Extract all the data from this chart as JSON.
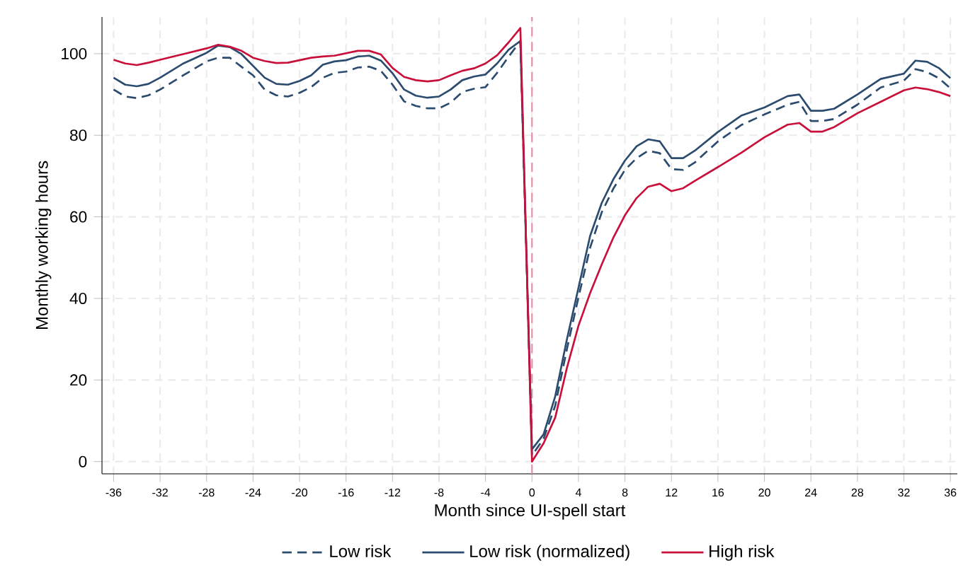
{
  "chart_data": {
    "type": "line",
    "xlabel": "Month since UI-spell start",
    "ylabel": "Monthly working hours",
    "x": [
      -36,
      -35,
      -34,
      -33,
      -32,
      -30,
      -28,
      -27,
      -26,
      -25,
      -24,
      -23,
      -22,
      -21,
      -20,
      -19,
      -18,
      -17,
      -16,
      -15,
      -14,
      -13,
      -12,
      -11,
      -10,
      -9,
      -8,
      -7,
      -6,
      -5,
      -4,
      -3,
      -2,
      -1,
      0,
      1,
      2,
      3,
      4,
      5,
      6,
      7,
      8,
      9,
      10,
      11,
      12,
      13,
      14,
      16,
      18,
      20,
      22,
      23,
      24,
      25,
      26,
      28,
      30,
      32,
      33,
      34,
      35,
      36
    ],
    "series": [
      {
        "name": "Low risk",
        "color": "#2b4b6f",
        "line_style": "dashed",
        "values": [
          91.2,
          89.5,
          89.1,
          89.8,
          91.2,
          94.7,
          98.1,
          99,
          99,
          96.8,
          94.7,
          91.2,
          89.8,
          89.5,
          90.4,
          91.8,
          94.1,
          95.3,
          95.6,
          96.6,
          96.8,
          95.8,
          92.4,
          88.3,
          87.2,
          86.6,
          86.6,
          88,
          90.6,
          91.4,
          91.8,
          95.3,
          99.3,
          103.1,
          1.5,
          5.6,
          13.7,
          27.5,
          40.3,
          52.4,
          61.1,
          66.9,
          71.5,
          74.4,
          76.2,
          75.6,
          71.7,
          71.5,
          73.3,
          78.5,
          82.5,
          85.1,
          87.5,
          88.2,
          83.5,
          83.5,
          84,
          87.5,
          91.7,
          93.4,
          96.2,
          95.5,
          94,
          91.5
        ]
      },
      {
        "name": "Low risk (normalized)",
        "color": "#2b4b6f",
        "line_style": "solid",
        "values": [
          94.1,
          92.4,
          92,
          92.6,
          94.1,
          97.6,
          100.2,
          102,
          101.6,
          99.9,
          97,
          94.1,
          92.6,
          92.4,
          93.3,
          94.7,
          97.3,
          98.1,
          98.4,
          99.3,
          99.5,
          98.3,
          95.2,
          91.2,
          89.7,
          89.2,
          89.5,
          91.2,
          93.5,
          94.4,
          94.9,
          97.6,
          101,
          103.1,
          3,
          6.7,
          16,
          29.9,
          42.6,
          55.3,
          63.4,
          69.2,
          73.8,
          77.3,
          79,
          78.5,
          74.4,
          74.4,
          76.2,
          80.8,
          84.8,
          86.8,
          89.6,
          90,
          86,
          86,
          86.5,
          90,
          93.8,
          95.1,
          98.3,
          98,
          96.5,
          94
        ]
      },
      {
        "name": "High risk",
        "color": "#c8103a",
        "line_style": "solid",
        "values": [
          98.5,
          97.6,
          97.2,
          97.8,
          98.5,
          99.9,
          101.3,
          102.2,
          101.7,
          100.7,
          99,
          98.2,
          97.7,
          97.8,
          98.4,
          99,
          99.3,
          99.5,
          100.1,
          100.7,
          100.7,
          99.8,
          96.5,
          94.3,
          93.5,
          93.2,
          93.5,
          94.7,
          95.8,
          96.4,
          97.6,
          99.6,
          102.8,
          106.3,
          0,
          4.5,
          10.8,
          22.9,
          33.3,
          41.3,
          48.3,
          54.9,
          60.4,
          64.6,
          67.4,
          68.1,
          66.3,
          67,
          68.8,
          72.2,
          75.7,
          79.5,
          82.6,
          83,
          80.9,
          80.9,
          82,
          85.4,
          88.2,
          91,
          91.7,
          91.3,
          90.6,
          89.6
        ]
      }
    ],
    "xlim": [
      -37,
      36.6
    ],
    "ylim": [
      -3,
      109
    ],
    "xticks": [
      -36,
      -32,
      -28,
      -24,
      -20,
      -16,
      -12,
      -8,
      -4,
      0,
      4,
      8,
      12,
      16,
      20,
      24,
      28,
      32,
      36
    ],
    "yticks": [
      0,
      20,
      40,
      60,
      80,
      100
    ],
    "ref_lines": [
      {
        "axis": "x",
        "value": 0,
        "color": "#e58fa6",
        "line_style": "dashed"
      }
    ],
    "grid": true,
    "legend": "bottom",
    "marker": "none"
  }
}
